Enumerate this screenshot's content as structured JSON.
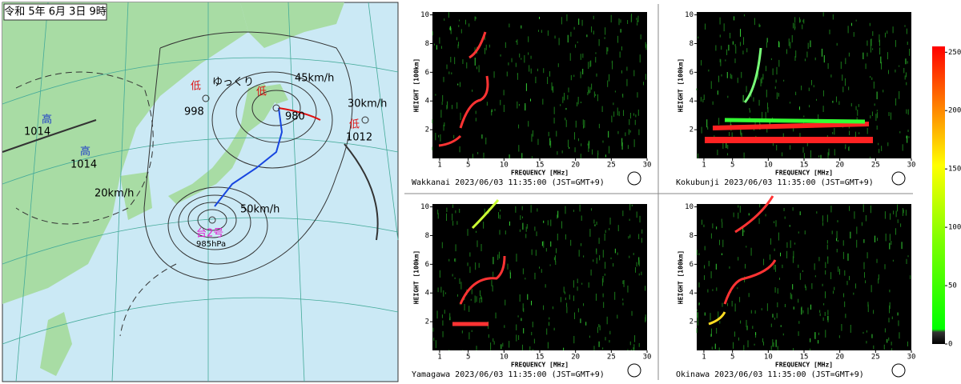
{
  "map": {
    "title": "令和 5年 6月 3日 9時",
    "labels": [
      "高",
      "1014",
      "高",
      "1014",
      "20km/h",
      "低",
      "998",
      "ゆっくり",
      "低",
      "980",
      "45km/h",
      "低",
      "1012",
      "30km/h",
      "50km/h",
      "台2号",
      "985hPa"
    ]
  },
  "ionogram_axes": {
    "xlabel": "FREQUENCY [MHz]",
    "ylabel": "HEIGHT [100km]",
    "xlim": [
      0,
      30
    ],
    "xticks": [
      1,
      5,
      10,
      15,
      20,
      25,
      30
    ],
    "ylim": [
      0,
      10.2
    ],
    "yticks": [
      2,
      4,
      6,
      8,
      10
    ]
  },
  "ionograms": [
    {
      "station": "Wakkanai",
      "timestamp": "2023/06/03 11:35:00 (JST=GMT+9)"
    },
    {
      "station": "Kokubunji",
      "timestamp": "2023/06/03 11:35:00 (JST=GMT+9)"
    },
    {
      "station": "Yamagawa",
      "timestamp": "2023/06/03 11:35:00 (JST=GMT+9)"
    },
    {
      "station": "Okinawa",
      "timestamp": "2023/06/03 11:35:00 (JST=GMT+9)"
    }
  ],
  "colorbar": {
    "lim": [
      0,
      255
    ],
    "ticks": [
      0,
      50,
      100,
      150,
      200,
      250
    ]
  }
}
